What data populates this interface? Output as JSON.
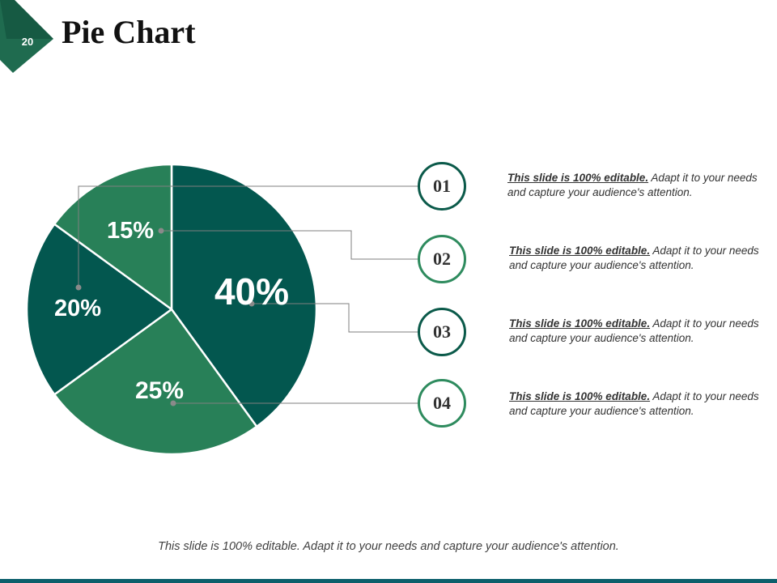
{
  "slide": {
    "number": "20",
    "title": "Pie Chart"
  },
  "colors": {
    "dark": "#03574f",
    "medium": "#288058",
    "accent": "#0b5a4a",
    "footer_bar": "#0c5f6b"
  },
  "chart_data": {
    "type": "pie",
    "title": "Pie Chart",
    "start_angle_deg": 0,
    "direction": "clockwise",
    "slices": [
      {
        "label": "40%",
        "value": 40,
        "color": "#03574f"
      },
      {
        "label": "25%",
        "value": 25,
        "color": "#288058"
      },
      {
        "label": "20%",
        "value": 20,
        "color": "#03574f"
      },
      {
        "label": "15%",
        "value": 15,
        "color": "#288058"
      }
    ]
  },
  "items": [
    {
      "number": "01",
      "lead": "This slide is 100% editable.",
      "text": " Adapt it to your needs and capture your audience's attention."
    },
    {
      "number": "02",
      "lead": "This slide is 100% editable.",
      "text": " Adapt it to your needs and capture your audience's attention."
    },
    {
      "number": "03",
      "lead": "This slide is 100% editable.",
      "text": " Adapt it to your needs and capture your audience's attention."
    },
    {
      "number": "04",
      "lead": "This slide is 100% editable.",
      "text": " Adapt it to your needs and capture your audience's attention."
    }
  ],
  "footer": {
    "note": "This slide is 100% editable. Adapt it to your needs and capture your audience's attention."
  }
}
